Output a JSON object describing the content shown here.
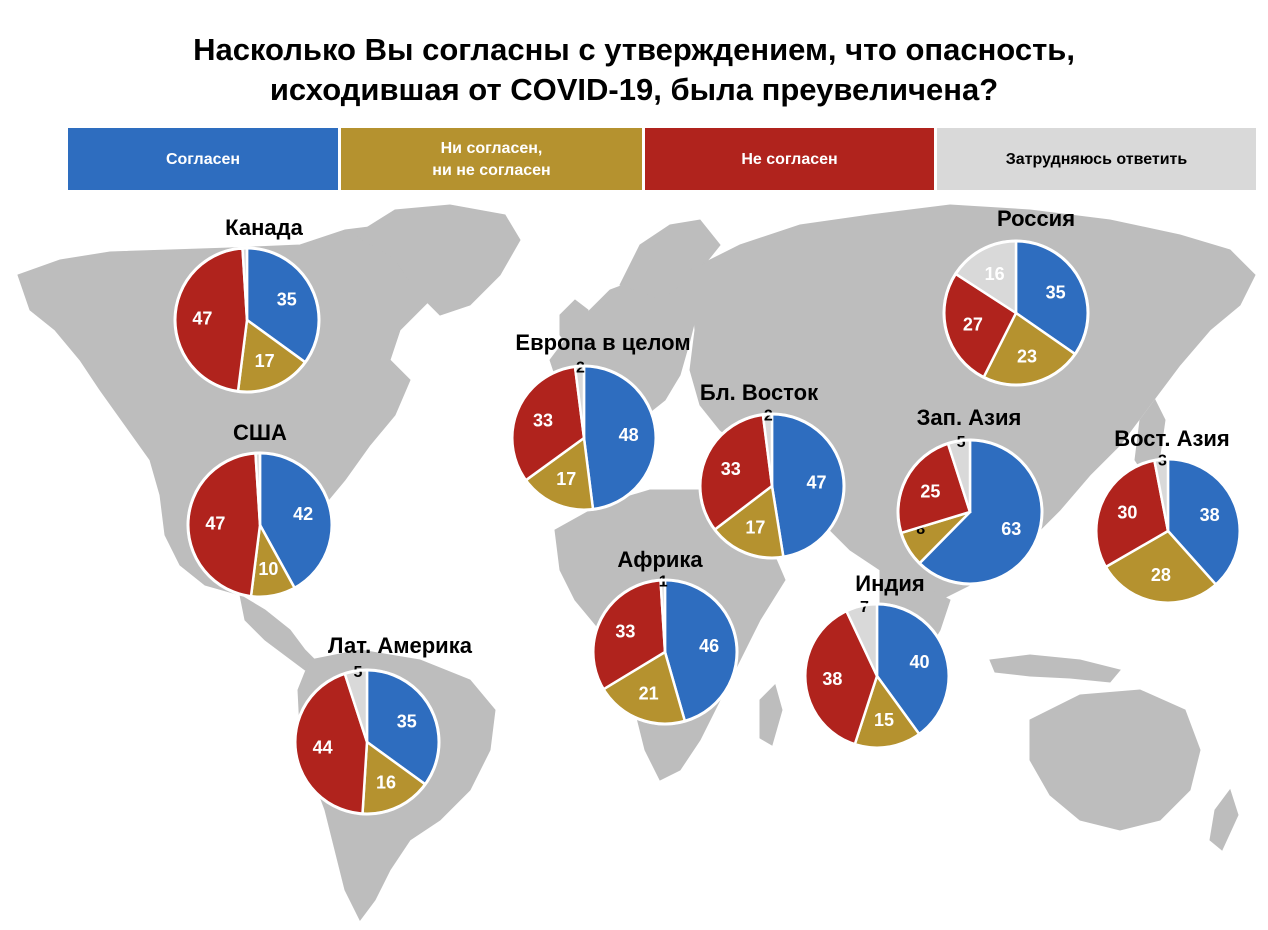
{
  "title": {
    "line1": "Насколько Вы согласны с утверждением, что опасность,",
    "line2": "исходившая от COVID-19, была преувеличена?"
  },
  "legend": [
    {
      "label_lines": [
        "Согласен"
      ],
      "color": "#2E6DBF",
      "text_color": "#ffffff"
    },
    {
      "label_lines": [
        "Ни согласен,",
        "ни не согласен"
      ],
      "color": "#B5922F",
      "text_color": "#ffffff"
    },
    {
      "label_lines": [
        "Не согласен"
      ],
      "color": "#B0231D",
      "text_color": "#ffffff"
    },
    {
      "label_lines": [
        "Затрудняюсь ответить"
      ],
      "color": "#D9D9D9",
      "text_color": "#000000"
    }
  ],
  "chart_data": {
    "type": "pie",
    "categories": [
      "Согласен",
      "Ни согласен, ни не согласен",
      "Не согласен",
      "Затрудняюсь ответить"
    ],
    "colors": [
      "#2E6DBF",
      "#B5922F",
      "#B0231D",
      "#D9D9D9"
    ],
    "pies": [
      {
        "name": "Канада",
        "values": [
          35,
          17,
          47,
          1
        ],
        "labels": [
          "35",
          "17",
          "47",
          ""
        ]
      },
      {
        "name": "США",
        "values": [
          42,
          10,
          47,
          1
        ],
        "labels": [
          "42",
          "10",
          "47",
          ""
        ]
      },
      {
        "name": "Лат. Америка",
        "values": [
          35,
          16,
          44,
          5
        ],
        "labels": [
          "35",
          "16",
          "44",
          "5"
        ]
      },
      {
        "name": "Европа в целом",
        "values": [
          48,
          17,
          33,
          2
        ],
        "labels": [
          "48",
          "17",
          "33",
          "2"
        ]
      },
      {
        "name": "Бл. Восток",
        "values": [
          47,
          17,
          33,
          2
        ],
        "labels": [
          "47",
          "17",
          "33",
          "2"
        ]
      },
      {
        "name": "Африка",
        "values": [
          46,
          21,
          33,
          1
        ],
        "labels": [
          "46",
          "21",
          "33",
          "1"
        ]
      },
      {
        "name": "Россия",
        "values": [
          35,
          23,
          27,
          16
        ],
        "labels": [
          "35",
          "23",
          "27",
          "16"
        ]
      },
      {
        "name": "Зап. Азия",
        "values": [
          63,
          8,
          25,
          5
        ],
        "labels": [
          "63",
          "8",
          "25",
          "5"
        ]
      },
      {
        "name": "Индия",
        "values": [
          40,
          15,
          38,
          7
        ],
        "labels": [
          "40",
          "15",
          "38",
          "7"
        ]
      },
      {
        "name": "Вост. Азия",
        "values": [
          38,
          28,
          30,
          3
        ],
        "labels": [
          "38",
          "28",
          "30",
          "3"
        ]
      }
    ]
  }
}
